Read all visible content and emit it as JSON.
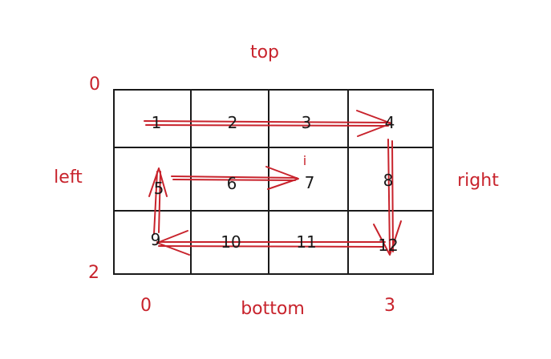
{
  "labels": {
    "top": "top",
    "bottom": "bottom",
    "left": "left",
    "right": "right",
    "row_start": "0",
    "row_end": "2",
    "col_start": "0",
    "col_end": "3",
    "pointer": "i"
  },
  "grid": {
    "rows": 3,
    "cols": 4,
    "cells": [
      [
        "1",
        "2",
        "3",
        "4"
      ],
      [
        "5",
        "6",
        "7",
        "8"
      ],
      [
        "9",
        "10",
        "11",
        "12"
      ]
    ]
  },
  "traversal_order": [
    "1",
    "2",
    "3",
    "4",
    "8",
    "12",
    "11",
    "10",
    "9",
    "5",
    "6",
    "7"
  ],
  "colors": {
    "ink": "#1a1a1a",
    "accent": "#c8232c",
    "background": "#ffffff"
  }
}
